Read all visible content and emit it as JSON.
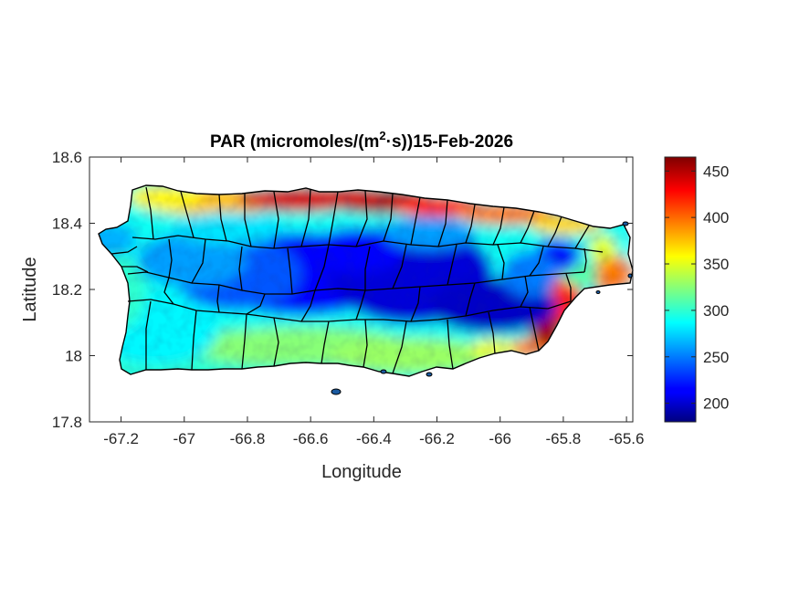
{
  "chart_data": {
    "type": "heatmap",
    "title": {
      "prefix": "PAR (micromoles/(m",
      "superscript": "2",
      "suffix": "·s))15-Feb-2026"
    },
    "xlabel": "Longitude",
    "ylabel": "Latitude",
    "xlim": [
      -67.3,
      -65.58
    ],
    "ylim": [
      17.8,
      18.6
    ],
    "xticks": [
      -67.2,
      -67,
      -66.8,
      -66.6,
      -66.4,
      -66.2,
      -66,
      -65.8,
      -65.6
    ],
    "xtick_labels": [
      "-67.2",
      "-67",
      "-66.8",
      "-66.6",
      "-66.4",
      "-66.2",
      "-66",
      "-65.8",
      "-65.6"
    ],
    "yticks": [
      17.8,
      18,
      18.2,
      18.4,
      18.6
    ],
    "ytick_labels": [
      "17.8",
      "18",
      "18.2",
      "18.4",
      "18.6"
    ],
    "colorbar": {
      "colormap": "jet",
      "range": [
        180,
        465
      ],
      "ticks": [
        200,
        250,
        300,
        350,
        400,
        450
      ],
      "tick_labels": [
        "200",
        "250",
        "300",
        "350",
        "400",
        "450"
      ]
    },
    "region": "Puerto Rico",
    "field_pattern": "high PAR (400-465) along the north coast and southeast coast; lowest PAR (190-230) over the central interior; moderate (280-350) along the south and west",
    "colors": {
      "boundaries": "#000000",
      "axes": "#262626"
    }
  }
}
